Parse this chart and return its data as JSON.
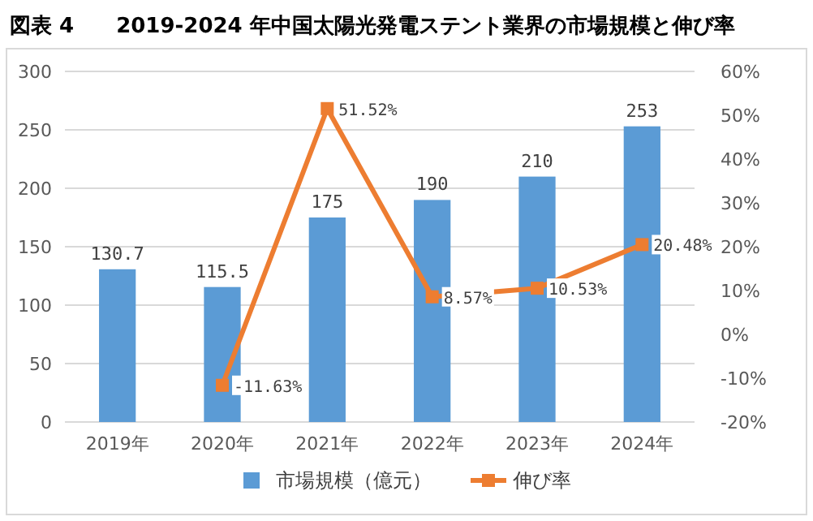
{
  "chart_data": {
    "type": "bar",
    "title": "図表 4　　2019-2024 年中国太陽光発電ステント業界の市場規模と伸び率",
    "categories": [
      "2019年",
      "2020年",
      "2021年",
      "2022年",
      "2023年",
      "2024年"
    ],
    "series": [
      {
        "name": "市場規模（億元）",
        "color": "#5b9bd5",
        "values": [
          130.7,
          115.5,
          175,
          190,
          210,
          253
        ]
      },
      {
        "name": "伸び率",
        "type": "line",
        "axis": "y2",
        "color": "#ed7d31",
        "marker": "square",
        "values": [
          null,
          -11.63,
          51.52,
          8.57,
          10.53,
          20.48
        ],
        "value_labels": [
          null,
          "-11.63%",
          "51.52%",
          "8.57%",
          "10.53%",
          "20.48%"
        ]
      }
    ],
    "ylim": [
      0,
      300
    ],
    "yticks": [
      0,
      50,
      100,
      150,
      200,
      250,
      300
    ],
    "y2lim": [
      -20,
      60
    ],
    "y2ticks": [
      {
        "value": -20,
        "label": "-20%"
      },
      {
        "value": -10,
        "label": "-10%"
      },
      {
        "value": 0,
        "label": "0%"
      },
      {
        "value": 10,
        "label": "10%"
      },
      {
        "value": 20,
        "label": "20%"
      },
      {
        "value": 30,
        "label": "30%"
      },
      {
        "value": 40,
        "label": "40%"
      },
      {
        "value": 50,
        "label": "50%"
      },
      {
        "value": 60,
        "label": "60%"
      }
    ],
    "grid": "y",
    "legend": "bottom",
    "data_labels": true
  }
}
